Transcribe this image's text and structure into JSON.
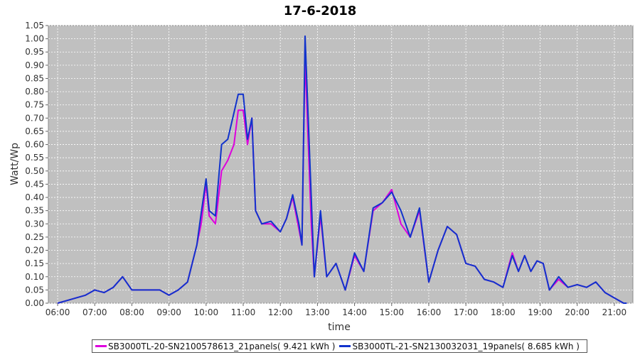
{
  "chart_data": {
    "type": "line",
    "title": "17-6-2018",
    "xlabel": "time",
    "ylabel": "Watt/Wp",
    "xlim": [
      "05:45",
      "21:30"
    ],
    "ylim": [
      0,
      1.05
    ],
    "grid": true,
    "legend_position": "bottom",
    "x_ticks": [
      "06:00",
      "07:00",
      "08:00",
      "09:00",
      "10:00",
      "11:00",
      "12:00",
      "13:00",
      "14:00",
      "15:00",
      "16:00",
      "17:00",
      "18:00",
      "19:00",
      "20:00",
      "21:00"
    ],
    "y_ticks": [
      "0.00",
      "0.05",
      "0.10",
      "0.15",
      "0.20",
      "0.25",
      "0.30",
      "0.35",
      "0.40",
      "0.45",
      "0.50",
      "0.55",
      "0.60",
      "0.65",
      "0.70",
      "0.75",
      "0.80",
      "0.85",
      "0.90",
      "0.95",
      "1.00",
      "1.05"
    ],
    "x": [
      "06:00",
      "06:15",
      "06:30",
      "06:45",
      "07:00",
      "07:15",
      "07:30",
      "07:45",
      "08:00",
      "08:15",
      "08:30",
      "08:45",
      "09:00",
      "09:15",
      "09:30",
      "09:45",
      "09:52",
      "10:00",
      "10:05",
      "10:15",
      "10:25",
      "10:35",
      "10:45",
      "10:52",
      "11:00",
      "11:07",
      "11:14",
      "11:20",
      "11:30",
      "11:45",
      "12:00",
      "12:10",
      "12:20",
      "12:30",
      "12:35",
      "12:40",
      "12:50",
      "12:55",
      "13:05",
      "13:15",
      "13:30",
      "13:45",
      "14:00",
      "14:15",
      "14:30",
      "14:45",
      "15:00",
      "15:15",
      "15:30",
      "15:45",
      "16:00",
      "16:15",
      "16:30",
      "16:45",
      "17:00",
      "17:15",
      "17:30",
      "17:45",
      "18:00",
      "18:15",
      "18:25",
      "18:35",
      "18:45",
      "18:55",
      "19:05",
      "19:15",
      "19:30",
      "19:45",
      "20:00",
      "20:15",
      "20:30",
      "20:45",
      "21:00",
      "21:15",
      "21:20"
    ],
    "series": [
      {
        "name": "SB3000TL-20-SN2100578613_21panels( 9.421 kWh )",
        "color": "#dd00dd",
        "values": [
          0.0,
          0.01,
          0.02,
          0.03,
          0.05,
          0.04,
          0.06,
          0.1,
          0.05,
          0.05,
          0.05,
          0.05,
          0.03,
          0.05,
          0.08,
          0.22,
          0.3,
          0.45,
          0.33,
          0.3,
          0.5,
          0.54,
          0.6,
          0.73,
          0.73,
          0.6,
          0.7,
          0.35,
          0.3,
          0.3,
          0.27,
          0.32,
          0.4,
          0.28,
          0.22,
          0.93,
          0.3,
          0.1,
          0.33,
          0.1,
          0.15,
          0.05,
          0.18,
          0.12,
          0.35,
          0.38,
          0.43,
          0.3,
          0.25,
          0.35,
          0.08,
          0.2,
          0.29,
          0.26,
          0.15,
          0.14,
          0.09,
          0.08,
          0.06,
          0.19,
          0.12,
          0.18,
          0.12,
          0.16,
          0.15,
          0.05,
          0.09,
          0.06,
          0.07,
          0.06,
          0.08,
          0.04,
          0.02,
          0.0,
          0.0
        ]
      },
      {
        "name": "SB3000TL-21-SN2130032031_19panels( 8.685 kWh )",
        "color": "#1133cc",
        "values": [
          0.0,
          0.01,
          0.02,
          0.03,
          0.05,
          0.04,
          0.06,
          0.1,
          0.05,
          0.05,
          0.05,
          0.05,
          0.03,
          0.05,
          0.08,
          0.22,
          0.34,
          0.47,
          0.35,
          0.33,
          0.6,
          0.62,
          0.72,
          0.79,
          0.79,
          0.62,
          0.7,
          0.35,
          0.3,
          0.31,
          0.27,
          0.32,
          0.41,
          0.3,
          0.22,
          1.01,
          0.4,
          0.1,
          0.35,
          0.1,
          0.15,
          0.05,
          0.19,
          0.12,
          0.36,
          0.38,
          0.42,
          0.35,
          0.25,
          0.36,
          0.08,
          0.2,
          0.29,
          0.26,
          0.15,
          0.14,
          0.09,
          0.08,
          0.06,
          0.18,
          0.12,
          0.18,
          0.12,
          0.16,
          0.15,
          0.05,
          0.1,
          0.06,
          0.07,
          0.06,
          0.08,
          0.04,
          0.02,
          0.0,
          0.0
        ]
      }
    ]
  }
}
